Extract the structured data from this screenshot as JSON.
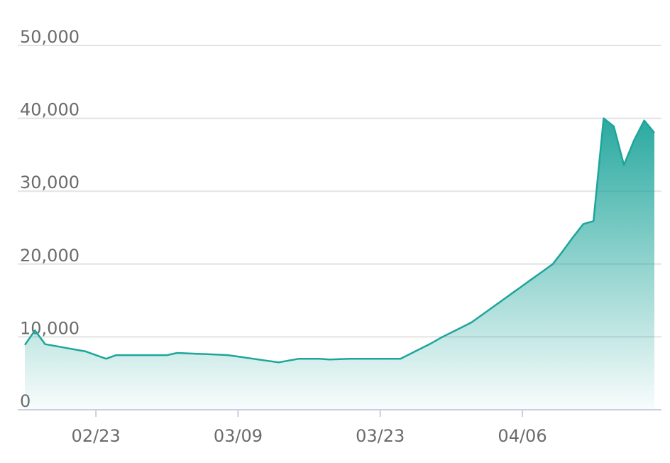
{
  "chart_data": {
    "type": "area",
    "categories": [
      null,
      null,
      null,
      null,
      null,
      null,
      null,
      "02/23",
      null,
      null,
      null,
      null,
      null,
      null,
      null,
      null,
      null,
      null,
      null,
      null,
      null,
      "03/09",
      null,
      null,
      null,
      null,
      null,
      null,
      null,
      null,
      null,
      null,
      null,
      null,
      null,
      "03/23",
      null,
      null,
      null,
      null,
      null,
      null,
      null,
      null,
      null,
      null,
      null,
      null,
      null,
      "04/06",
      null,
      null,
      null,
      null,
      null,
      null,
      null,
      null,
      null,
      null,
      null,
      null,
      null
    ],
    "values": [
      8900,
      10900,
      9000,
      8750,
      8500,
      8250,
      8000,
      7500,
      7000,
      7500,
      7500,
      7500,
      7500,
      7500,
      7500,
      7800,
      7740,
      7680,
      7620,
      7560,
      7500,
      7300,
      7100,
      6900,
      6700,
      6500,
      6750,
      7000,
      7000,
      7000,
      6900,
      6950,
      7000,
      7000,
      7000,
      7000,
      7000,
      7000,
      7700,
      8400,
      9100,
      9900,
      10600,
      11300,
      12000,
      13000,
      14000,
      15000,
      16000,
      17000,
      18000,
      19000,
      20000,
      21800,
      23700,
      25500,
      25900,
      40000,
      38900,
      33600,
      37000,
      39700,
      38000
    ],
    "color": "#1ea59b",
    "ylim": [
      0,
      50000
    ],
    "yticks": [
      0,
      {
        "value": 10000,
        "label": "10,000"
      },
      {
        "value": 20000,
        "label": "20,000"
      },
      {
        "value": 30000,
        "label": "30,000"
      },
      {
        "value": 40000,
        "label": "40,000"
      },
      {
        "value": 50000,
        "label": "50,000"
      }
    ],
    "grid": true
  }
}
